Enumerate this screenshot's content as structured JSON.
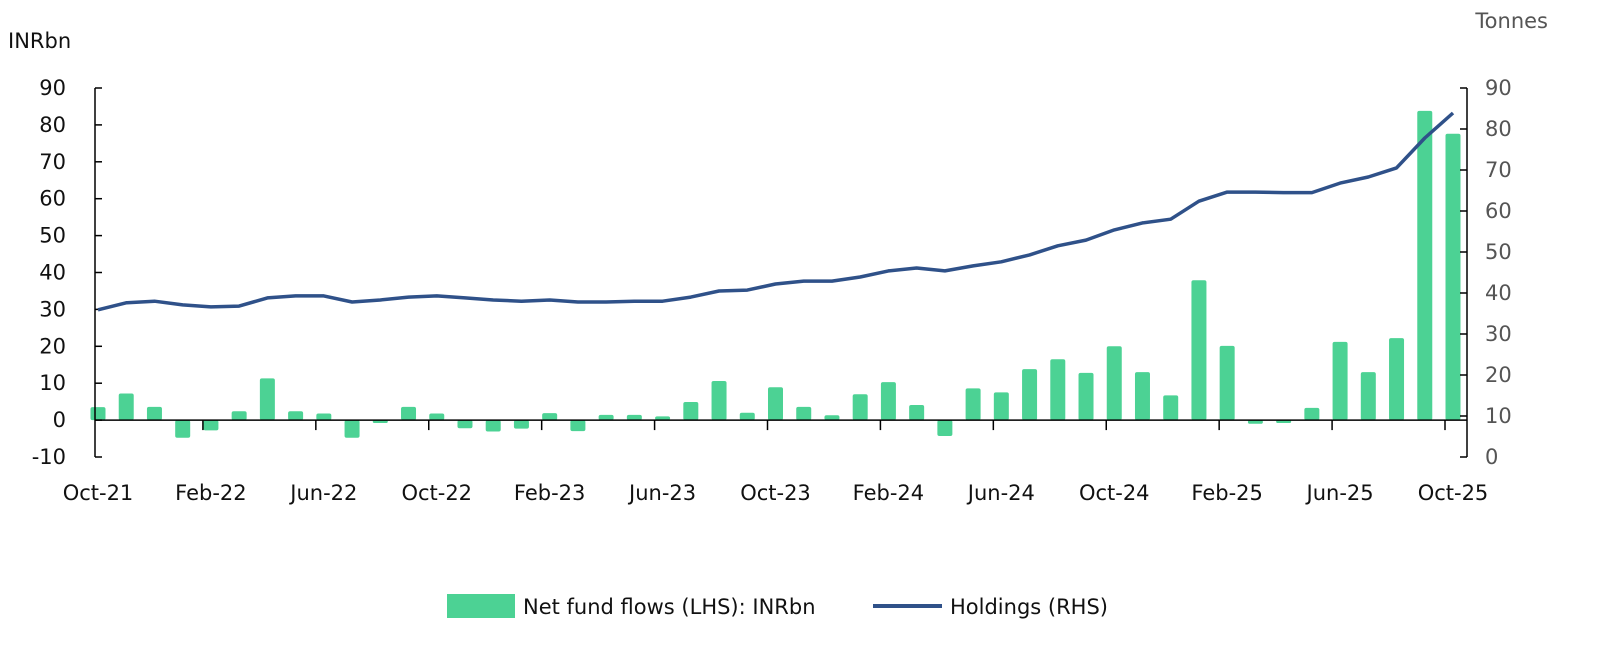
{
  "chart_data": {
    "type": "bar+line",
    "left_axis_title": "INRbn",
    "right_axis_title": "Tonnes",
    "left_ylim": [
      -10,
      90
    ],
    "right_ylim": [
      0,
      90
    ],
    "left_ticks": [
      -10,
      0,
      10,
      20,
      30,
      40,
      50,
      60,
      70,
      80,
      90
    ],
    "right_ticks": [
      0,
      10,
      20,
      30,
      40,
      50,
      60,
      70,
      80,
      90
    ],
    "x_tick_labels": [
      "Oct-21",
      "Feb-22",
      "Jun-22",
      "Oct-22",
      "Feb-23",
      "Jun-23",
      "Oct-23",
      "Feb-24",
      "Jun-24",
      "Oct-24",
      "Feb-25",
      "Jun-25",
      "Oct-25"
    ],
    "x_tick_every": 4,
    "grid": false,
    "legend_placement": "bottom-center",
    "series": [
      {
        "name": "Net fund flows (LHS): INRbn",
        "type": "bar",
        "axis": "left",
        "color": "#4cd294",
        "values": [
          3.5,
          7.2,
          3.6,
          -4.8,
          -2.8,
          2.4,
          11.3,
          2.4,
          1.8,
          -4.8,
          -0.8,
          3.6,
          1.8,
          -2.2,
          -3.1,
          -2.3,
          1.9,
          -3.0,
          1.4,
          1.4,
          1.0,
          4.9,
          10.6,
          2.0,
          8.9,
          3.6,
          1.3,
          7.0,
          10.3,
          4.1,
          -4.3,
          8.6,
          7.5,
          13.8,
          16.5,
          12.8,
          20.0,
          13.0,
          6.7,
          37.9,
          20.1,
          -1.0,
          -0.8,
          3.3,
          21.2,
          13.0,
          22.2,
          83.8,
          77.6
        ]
      },
      {
        "name": "Holdings (RHS)",
        "type": "line",
        "axis": "right",
        "color": "#2f5189",
        "values": [
          35.9,
          37.6,
          38.0,
          37.1,
          36.6,
          36.8,
          38.8,
          39.3,
          39.3,
          37.8,
          38.3,
          39.0,
          39.3,
          38.8,
          38.3,
          38.0,
          38.3,
          37.8,
          37.8,
          38.0,
          38.0,
          39.0,
          40.5,
          40.7,
          42.2,
          42.9,
          42.9,
          43.9,
          45.4,
          46.1,
          45.4,
          46.6,
          47.6,
          49.3,
          51.5,
          52.9,
          55.4,
          57.1,
          58.0,
          62.4,
          64.6,
          64.6,
          64.5,
          64.5,
          66.8,
          68.3,
          70.5,
          77.8,
          83.9
        ]
      }
    ]
  }
}
